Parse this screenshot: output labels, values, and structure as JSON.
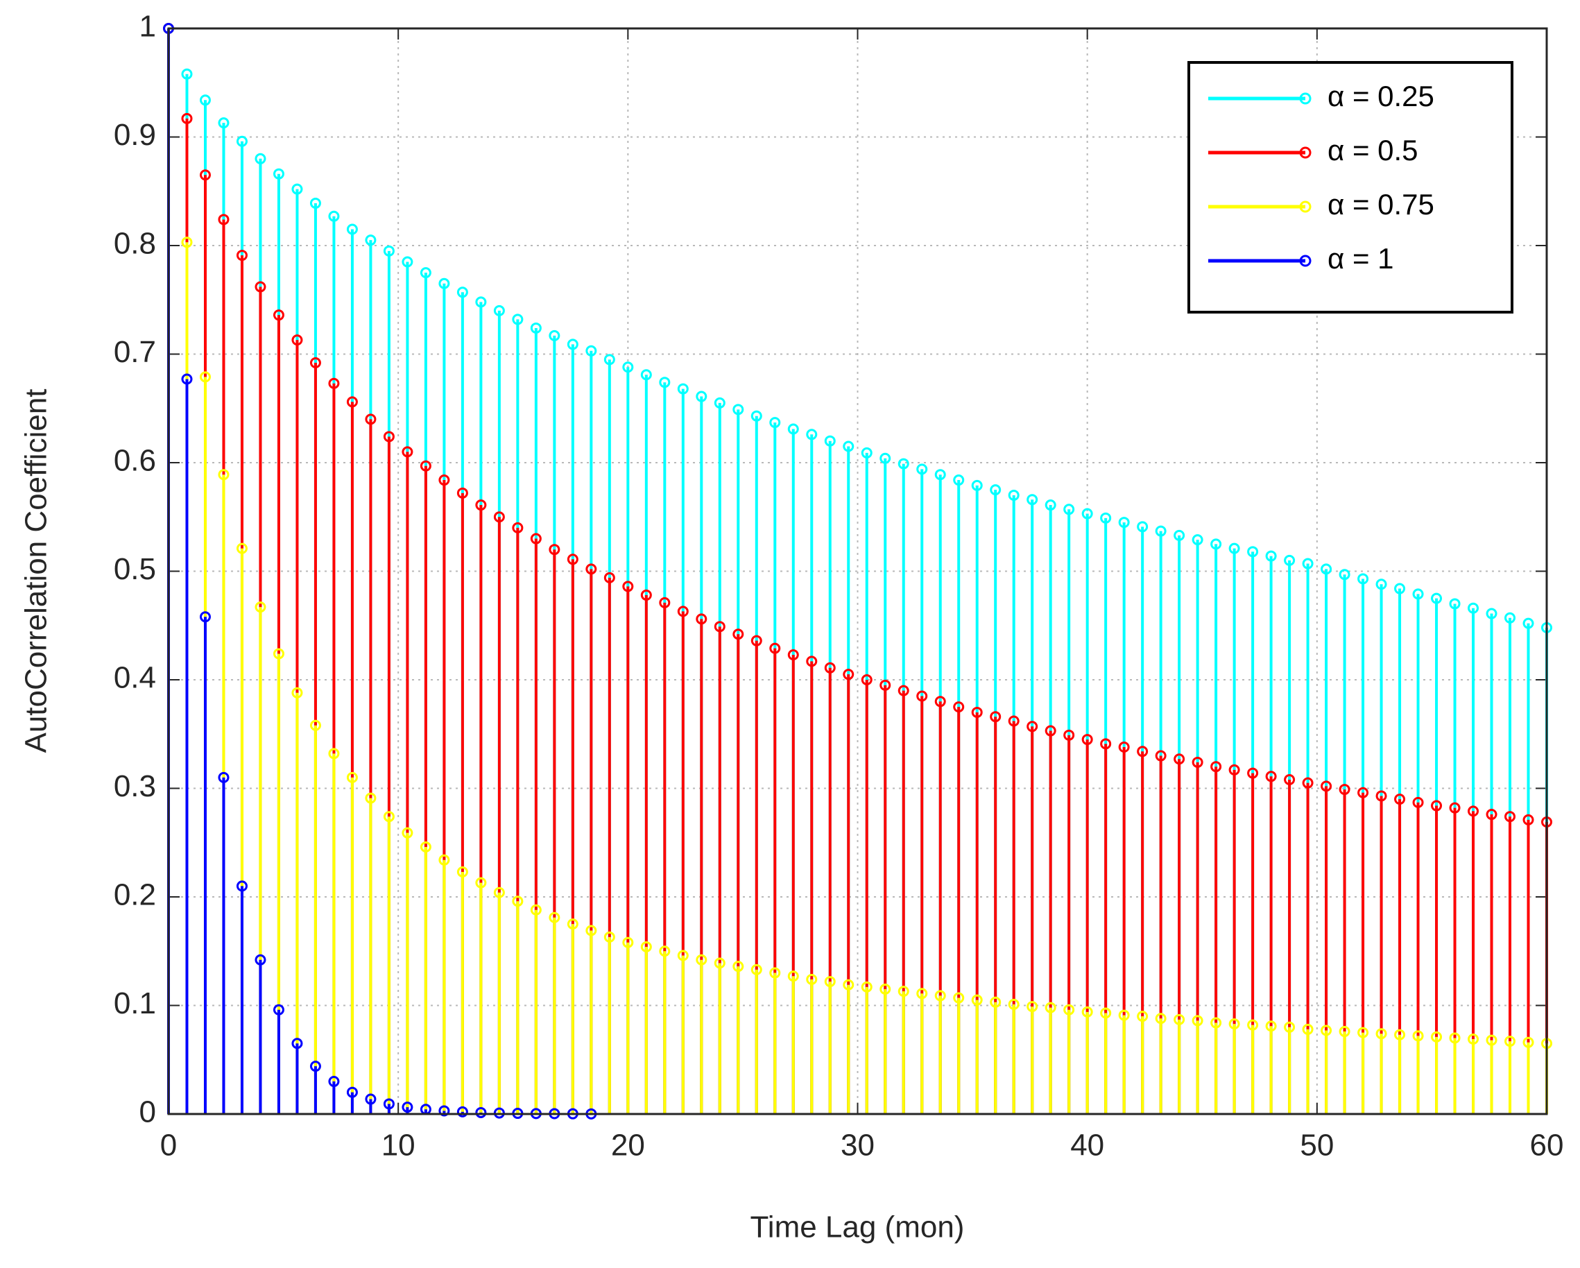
{
  "chart_data": {
    "type": "stem",
    "xlabel": "Time Lag (mon)",
    "ylabel": "AutoCorrelation Coefficient",
    "x": [
      0,
      0.8,
      1.6,
      2.4,
      3.2,
      4,
      4.8,
      5.6,
      6.4,
      7.2,
      8,
      8.8,
      9.6,
      10.4,
      11.2,
      12,
      12.8,
      13.6,
      14.4,
      15.2,
      16,
      16.8,
      17.6,
      18.4,
      19.2,
      20,
      20.8,
      21.6,
      22.4,
      23.2,
      24,
      24.8,
      25.6,
      26.4,
      27.2,
      28,
      28.8,
      29.6,
      30.4,
      31.2,
      32,
      32.8,
      33.6,
      34.4,
      35.2,
      36,
      36.8,
      37.6,
      38.4,
      39.2,
      40,
      40.8,
      41.6,
      42.4,
      43.2,
      44,
      44.8,
      45.6,
      46.4,
      47.2,
      48,
      48.8,
      49.6,
      50.4,
      51.2,
      52,
      52.8,
      53.6,
      54.4,
      55.2,
      56,
      56.8,
      57.6,
      58.4,
      59.2,
      60
    ],
    "series": [
      {
        "name": "α = 0.25",
        "color": "#00ffff",
        "values": [
          1,
          0.958,
          0.934,
          0.913,
          0.896,
          0.88,
          0.866,
          0.852,
          0.839,
          0.827,
          0.815,
          0.805,
          0.795,
          0.785,
          0.775,
          0.765,
          0.757,
          0.748,
          0.74,
          0.732,
          0.724,
          0.717,
          0.709,
          0.703,
          0.695,
          0.688,
          0.681,
          0.674,
          0.668,
          0.661,
          0.655,
          0.649,
          0.643,
          0.637,
          0.631,
          0.626,
          0.62,
          0.615,
          0.609,
          0.604,
          0.599,
          0.594,
          0.589,
          0.584,
          0.579,
          0.575,
          0.57,
          0.566,
          0.561,
          0.557,
          0.553,
          0.549,
          0.545,
          0.541,
          0.537,
          0.533,
          0.529,
          0.525,
          0.521,
          0.518,
          0.514,
          0.51,
          0.507,
          0.502,
          0.497,
          0.493,
          0.488,
          0.484,
          0.479,
          0.475,
          0.47,
          0.466,
          0.461,
          0.457,
          0.452,
          0.448
        ]
      },
      {
        "name": "α = 0.5",
        "color": "#ff0000",
        "values": [
          1,
          0.917,
          0.865,
          0.824,
          0.791,
          0.762,
          0.736,
          0.713,
          0.692,
          0.673,
          0.656,
          0.64,
          0.624,
          0.61,
          0.597,
          0.584,
          0.572,
          0.561,
          0.55,
          0.54,
          0.53,
          0.52,
          0.511,
          0.502,
          0.494,
          0.486,
          0.478,
          0.471,
          0.463,
          0.456,
          0.449,
          0.442,
          0.436,
          0.429,
          0.423,
          0.417,
          0.411,
          0.405,
          0.4,
          0.395,
          0.39,
          0.385,
          0.38,
          0.375,
          0.37,
          0.366,
          0.362,
          0.357,
          0.353,
          0.349,
          0.345,
          0.341,
          0.338,
          0.334,
          0.33,
          0.327,
          0.324,
          0.32,
          0.317,
          0.314,
          0.311,
          0.308,
          0.305,
          0.302,
          0.299,
          0.296,
          0.293,
          0.29,
          0.287,
          0.284,
          0.282,
          0.279,
          0.276,
          0.274,
          0.271,
          0.269
        ]
      },
      {
        "name": "α = 0.75",
        "color": "#ffff00",
        "values": [
          1,
          0.803,
          0.679,
          0.589,
          0.521,
          0.467,
          0.424,
          0.388,
          0.358,
          0.332,
          0.31,
          0.291,
          0.274,
          0.259,
          0.246,
          0.234,
          0.223,
          0.213,
          0.204,
          0.196,
          0.188,
          0.181,
          0.175,
          0.169,
          0.163,
          0.158,
          0.154,
          0.15,
          0.146,
          0.142,
          0.139,
          0.136,
          0.133,
          0.13,
          0.127,
          0.124,
          0.122,
          0.119,
          0.117,
          0.115,
          0.113,
          0.111,
          0.109,
          0.107,
          0.105,
          0.103,
          0.101,
          0.099,
          0.098,
          0.096,
          0.094,
          0.093,
          0.091,
          0.09,
          0.088,
          0.087,
          0.086,
          0.084,
          0.083,
          0.082,
          0.081,
          0.08,
          0.078,
          0.077,
          0.076,
          0.075,
          0.074,
          0.073,
          0.072,
          0.071,
          0.07,
          0.069,
          0.068,
          0.067,
          0.066,
          0.065
        ]
      },
      {
        "name": "α = 1",
        "color": "#0000ff",
        "values": [
          1,
          0.677,
          0.458,
          0.31,
          0.21,
          0.142,
          0.096,
          0.065,
          0.044,
          0.03,
          0.02,
          0.0137,
          0.0093,
          0.0063,
          0.0043,
          0.0029,
          0.002,
          0.0013,
          0.0009,
          0.0006,
          0.0004,
          0.0003,
          0.0002,
          0.0001,
          null,
          null,
          null,
          null,
          null,
          null,
          null,
          null,
          null,
          null,
          null,
          null,
          null,
          null,
          null,
          null,
          null,
          null,
          null,
          null,
          null,
          null,
          null,
          null,
          null,
          null,
          null,
          null,
          null,
          null,
          null,
          null,
          null,
          null,
          null,
          null,
          null,
          null,
          null,
          null,
          null,
          null,
          null,
          null,
          null,
          null,
          null,
          null,
          null,
          null,
          null,
          null
        ]
      }
    ],
    "xlim": [
      0,
      60
    ],
    "xticks": [
      0,
      10,
      20,
      30,
      40,
      50,
      60
    ],
    "ylim": [
      0,
      1
    ],
    "yticks": [
      0,
      0.1,
      0.2,
      0.3,
      0.4,
      0.5,
      0.6,
      0.7,
      0.8,
      0.9,
      1
    ],
    "grid": true,
    "legend": "upper right"
  }
}
